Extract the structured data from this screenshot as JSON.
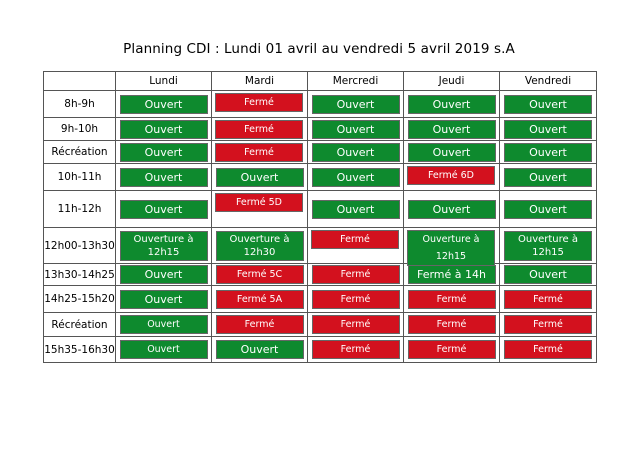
{
  "title": "Planning CDI : Lundi 01 avril au vendredi 5 avril 2019 s.A",
  "colors": {
    "open": "#0e8a2e",
    "closed": "#d3111e"
  },
  "headers": [
    "",
    "Lundi",
    "Mardi",
    "Mercredi",
    "Jeudi",
    "Vendredi"
  ],
  "rows": [
    {
      "time": "8h-9h",
      "h": 27,
      "cells": [
        {
          "t": "Ouvert",
          "s": "open"
        },
        {
          "t": "Fermé",
          "s": "closed",
          "top": true,
          "small": true
        },
        {
          "t": "Ouvert",
          "s": "open"
        },
        {
          "t": "Ouvert",
          "s": "open"
        },
        {
          "t": "Ouvert",
          "s": "open"
        }
      ]
    },
    {
      "time": "9h-10h",
      "h": 23,
      "cells": [
        {
          "t": "Ouvert",
          "s": "open"
        },
        {
          "t": "Fermé",
          "s": "closed",
          "top": true,
          "small": true
        },
        {
          "t": "Ouvert",
          "s": "open"
        },
        {
          "t": "Ouvert",
          "s": "open"
        },
        {
          "t": "Ouvert",
          "s": "open"
        }
      ]
    },
    {
      "time": "Récréation",
      "h": 23,
      "cells": [
        {
          "t": "Ouvert",
          "s": "open"
        },
        {
          "t": "Fermé",
          "s": "closed",
          "top": true,
          "small": true
        },
        {
          "t": "Ouvert",
          "s": "open"
        },
        {
          "t": "Ouvert",
          "s": "open"
        },
        {
          "t": "Ouvert",
          "s": "open"
        }
      ]
    },
    {
      "time": "10h-11h",
      "h": 27,
      "cells": [
        {
          "t": "Ouvert",
          "s": "open"
        },
        {
          "t": "Ouvert",
          "s": "open"
        },
        {
          "t": "Ouvert",
          "s": "open"
        },
        {
          "t": "Fermé 6D",
          "s": "closed",
          "top": true,
          "small": true
        },
        {
          "t": "Ouvert",
          "s": "open"
        }
      ]
    },
    {
      "time": "11h-12h",
      "h": 37,
      "cells": [
        {
          "t": "Ouvert",
          "s": "open"
        },
        {
          "t": "Fermé 5D",
          "s": "closed",
          "top": true,
          "small": true
        },
        {
          "t": "Ouvert",
          "s": "open"
        },
        {
          "t": "Ouvert",
          "s": "open"
        },
        {
          "t": "Ouvert",
          "s": "open"
        }
      ]
    },
    {
      "time": "12h00-13h30",
      "h": 36,
      "cells": [
        {
          "t": "Ouverture à 12h15",
          "s": "open",
          "two": true
        },
        {
          "t": "Ouverture à 12h30",
          "s": "open",
          "two": true
        },
        {
          "t": "Fermé",
          "s": "closed",
          "top": true,
          "small": true
        },
        {
          "t": "Ouverture à 12h15",
          "s": "open",
          "top": true,
          "small": true
        },
        {
          "t": "Ouverture à 12h15",
          "s": "open",
          "two": true
        }
      ]
    },
    {
      "time": "13h30-14h25",
      "h": 22,
      "cells": [
        {
          "t": "Ouvert",
          "s": "open"
        },
        {
          "t": "Fermé 5C",
          "s": "closed",
          "small": true
        },
        {
          "t": "Fermé",
          "s": "closed",
          "small": true
        },
        {
          "t": "Fermé à 14h",
          "s": "open"
        },
        {
          "t": "Ouvert",
          "s": "open"
        }
      ]
    },
    {
      "time": "14h25-15h20",
      "h": 27,
      "cells": [
        {
          "t": "Ouvert",
          "s": "open"
        },
        {
          "t": "Fermé 5A",
          "s": "closed",
          "small": true
        },
        {
          "t": "Fermé",
          "s": "closed",
          "small": true
        },
        {
          "t": "Fermé",
          "s": "closed",
          "small": true
        },
        {
          "t": "Fermé",
          "s": "closed",
          "small": true
        }
      ]
    },
    {
      "time": "Récréation",
      "h": 24,
      "cells": [
        {
          "t": "Ouvert",
          "s": "open",
          "small": true
        },
        {
          "t": "Fermé",
          "s": "closed",
          "small": true
        },
        {
          "t": "Fermé",
          "s": "closed",
          "small": true
        },
        {
          "t": "Fermé",
          "s": "closed",
          "small": true
        },
        {
          "t": "Fermé",
          "s": "closed",
          "small": true
        }
      ]
    },
    {
      "time": "15h35-16h30",
      "h": 26,
      "cells": [
        {
          "t": "Ouvert",
          "s": "open",
          "small": true
        },
        {
          "t": "Ouvert",
          "s": "open"
        },
        {
          "t": "Fermé",
          "s": "closed",
          "small": true
        },
        {
          "t": "Fermé",
          "s": "closed",
          "small": true
        },
        {
          "t": "Fermé",
          "s": "closed",
          "small": true
        }
      ]
    }
  ]
}
